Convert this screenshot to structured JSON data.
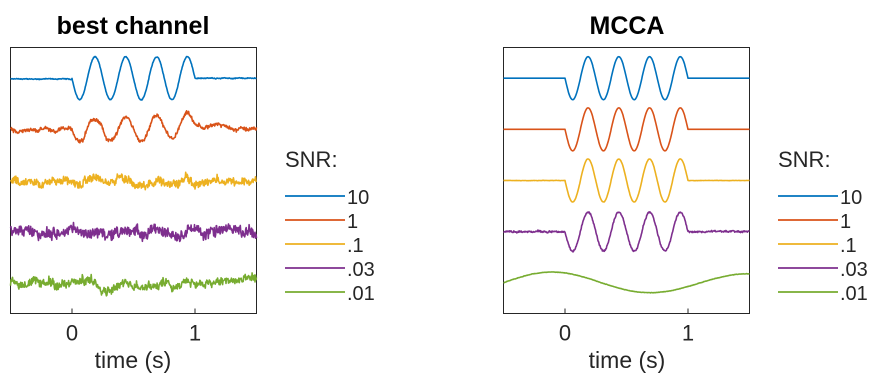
{
  "chart_data": [
    {
      "type": "line",
      "title": "best channel",
      "xlabel": "time (s)",
      "ylabel": "",
      "xlim": [
        -0.5,
        1.5
      ],
      "xticks": [
        0,
        1
      ],
      "xtick_labels": [
        "0",
        "1"
      ],
      "y_ticks_shown": false,
      "signal_window_s": [
        0,
        1
      ],
      "signal_cycles": 4,
      "series": [
        {
          "snr": 10,
          "color": "#0072BD",
          "signal_amp": 1.0,
          "noise": 0.06,
          "drift": 0.0
        },
        {
          "snr": 1,
          "color": "#D95319",
          "signal_amp": 0.55,
          "noise": 0.25,
          "drift": 0.25
        },
        {
          "snr": 0.1,
          "color": "#EDB120",
          "signal_amp": 0.15,
          "noise": 0.55,
          "drift": 0.3
        },
        {
          "snr": 0.03,
          "color": "#7E2F8E",
          "signal_amp": 0.05,
          "noise": 0.75,
          "drift": 0.3
        },
        {
          "snr": 0.01,
          "color": "#77AC30",
          "signal_amp": 0.05,
          "noise": 0.6,
          "drift": 0.35
        }
      ]
    },
    {
      "type": "line",
      "title": "MCCA",
      "xlabel": "time (s)",
      "ylabel": "",
      "xlim": [
        -0.5,
        1.5
      ],
      "xticks": [
        0,
        1
      ],
      "xtick_labels": [
        "0",
        "1"
      ],
      "y_ticks_shown": false,
      "signal_window_s": [
        0,
        1
      ],
      "signal_cycles": 4,
      "series": [
        {
          "snr": 10,
          "color": "#0072BD",
          "signal_amp": 1.0,
          "noise": 0.0,
          "drift": 0.0
        },
        {
          "snr": 1,
          "color": "#D95319",
          "signal_amp": 1.0,
          "noise": 0.0,
          "drift": 0.0
        },
        {
          "snr": 0.1,
          "color": "#EDB120",
          "signal_amp": 1.0,
          "noise": 0.02,
          "drift": 0.0
        },
        {
          "snr": 0.03,
          "color": "#7E2F8E",
          "signal_amp": 0.9,
          "noise": 0.12,
          "drift": 0.0
        },
        {
          "snr": 0.01,
          "color": "#77AC30",
          "signal_amp": 0.0,
          "noise": 0.05,
          "drift": 0.9
        }
      ]
    }
  ],
  "legend": {
    "title": "SNR:",
    "entries": [
      "10",
      "1",
      ".1",
      ".03",
      ".01"
    ],
    "colors": [
      "#0072BD",
      "#D95319",
      "#EDB120",
      "#7E2F8E",
      "#77AC30"
    ]
  }
}
